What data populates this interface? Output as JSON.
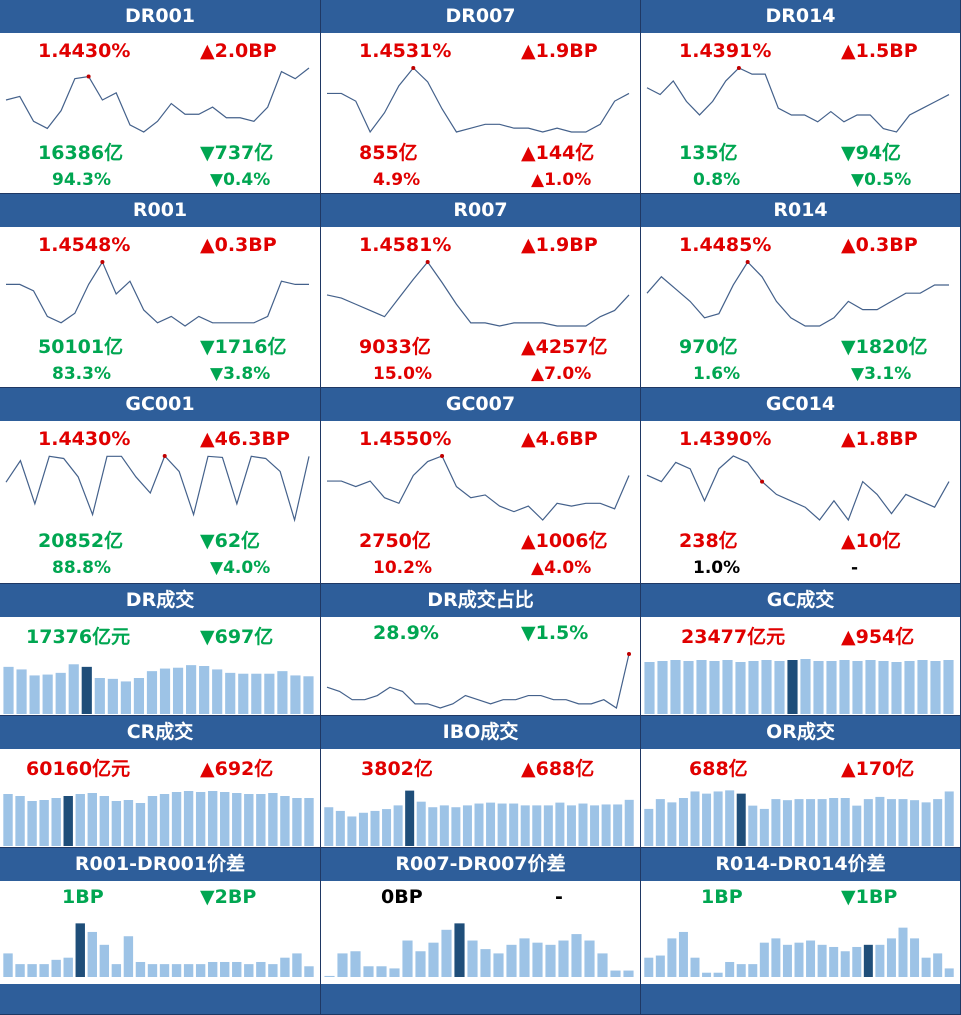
{
  "colors": {
    "header": "#2e5e9a",
    "red": "#e00000",
    "green": "#00a651",
    "bar": "#9dc3e6",
    "bar_highlight": "#1f4e79",
    "line": "#44618b"
  },
  "panels": [
    {
      "title": "DR001",
      "type": "line",
      "v1": "1.4430%",
      "v1c": "red",
      "v2": "▲2.0BP",
      "v2c": "red",
      "v3": "16386亿",
      "v3c": "green",
      "v4": "▼737亿",
      "v4c": "green",
      "v5": "94.3%",
      "v5c": "green",
      "v6": "▼0.4%",
      "v6c": "green",
      "series": [
        1.41,
        1.415,
        1.38,
        1.37,
        1.395,
        1.44,
        1.443,
        1.41,
        1.42,
        1.375,
        1.365,
        1.38,
        1.405,
        1.39,
        1.39,
        1.4,
        1.385,
        1.385,
        1.38,
        1.4,
        1.45,
        1.44,
        1.455
      ],
      "peak": 6
    },
    {
      "title": "DR007",
      "type": "line",
      "v1": "1.4531%",
      "v1c": "red",
      "v2": "▲1.9BP",
      "v2c": "red",
      "v3": "855亿",
      "v3c": "red",
      "v4": "▲144亿",
      "v4c": "red",
      "v5": "4.9%",
      "v5c": "red",
      "v6": "▲1.0%",
      "v6c": "red",
      "series": [
        1.42,
        1.42,
        1.41,
        1.37,
        1.395,
        1.43,
        1.453,
        1.435,
        1.4,
        1.37,
        1.375,
        1.38,
        1.38,
        1.375,
        1.375,
        1.37,
        1.375,
        1.37,
        1.37,
        1.38,
        1.41,
        1.42
      ],
      "peak": 6
    },
    {
      "title": "DR014",
      "type": "line",
      "v1": "1.4391%",
      "v1c": "red",
      "v2": "▲1.5BP",
      "v2c": "red",
      "v3": "135亿",
      "v3c": "green",
      "v4": "▼94亿",
      "v4c": "green",
      "v5": "0.8%",
      "v5c": "green",
      "v6": "▼0.5%",
      "v6c": "green",
      "series": [
        1.41,
        1.4,
        1.42,
        1.39,
        1.37,
        1.39,
        1.42,
        1.439,
        1.43,
        1.43,
        1.38,
        1.37,
        1.37,
        1.36,
        1.375,
        1.36,
        1.37,
        1.37,
        1.35,
        1.345,
        1.37,
        1.38,
        1.39,
        1.4
      ],
      "peak": 7
    },
    {
      "title": "R001",
      "type": "line",
      "v1": "1.4548%",
      "v1c": "red",
      "v2": "▲0.3BP",
      "v2c": "red",
      "v3": "50101亿",
      "v3c": "green",
      "v4": "▼1716亿",
      "v4c": "green",
      "v5": "83.3%",
      "v5c": "green",
      "v6": "▼3.8%",
      "v6c": "green",
      "series": [
        1.42,
        1.42,
        1.41,
        1.37,
        1.36,
        1.375,
        1.42,
        1.455,
        1.405,
        1.425,
        1.38,
        1.36,
        1.37,
        1.355,
        1.37,
        1.36,
        1.36,
        1.36,
        1.36,
        1.37,
        1.425,
        1.42,
        1.42
      ],
      "peak": 7
    },
    {
      "title": "R007",
      "type": "line",
      "v1": "1.4581%",
      "v1c": "red",
      "v2": "▲1.9BP",
      "v2c": "red",
      "v3": "9033亿",
      "v3c": "red",
      "v4": "▲4257亿",
      "v4c": "red",
      "v5": "15.0%",
      "v5c": "red",
      "v6": "▲7.0%",
      "v6c": "red",
      "series": [
        1.405,
        1.4,
        1.39,
        1.38,
        1.37,
        1.4,
        1.43,
        1.458,
        1.425,
        1.39,
        1.36,
        1.36,
        1.355,
        1.36,
        1.36,
        1.36,
        1.355,
        1.355,
        1.355,
        1.37,
        1.38,
        1.405
      ],
      "peak": 7
    },
    {
      "title": "R014",
      "type": "line",
      "v1": "1.4485%",
      "v1c": "red",
      "v2": "▲0.3BP",
      "v2c": "red",
      "v3": "970亿",
      "v3c": "green",
      "v4": "▼1820亿",
      "v4c": "green",
      "v5": "1.6%",
      "v5c": "green",
      "v6": "▼3.1%",
      "v6c": "green",
      "series": [
        1.41,
        1.43,
        1.415,
        1.4,
        1.38,
        1.385,
        1.42,
        1.448,
        1.43,
        1.4,
        1.38,
        1.37,
        1.37,
        1.38,
        1.4,
        1.39,
        1.39,
        1.4,
        1.41,
        1.41,
        1.42,
        1.42
      ],
      "peak": 7
    },
    {
      "title": "GC001",
      "type": "line",
      "v1": "1.4430%",
      "v1c": "red",
      "v2": "▲46.3BP",
      "v2c": "red",
      "v3": "20852亿",
      "v3c": "green",
      "v4": "▼62亿",
      "v4c": "green",
      "v5": "88.8%",
      "v5c": "green",
      "v6": "▼4.0%",
      "v6c": "green",
      "series": [
        1.2,
        1.4,
        1.0,
        1.44,
        1.42,
        1.25,
        0.9,
        1.44,
        1.44,
        1.25,
        1.1,
        1.443,
        1.3,
        0.9,
        1.44,
        1.43,
        1.0,
        1.44,
        1.42,
        1.3,
        0.85,
        1.44
      ],
      "peak": 11
    },
    {
      "title": "GC007",
      "type": "line",
      "v1": "1.4550%",
      "v1c": "red",
      "v2": "▲4.6BP",
      "v2c": "red",
      "v3": "2750亿",
      "v3c": "red",
      "v4": "▲1006亿",
      "v4c": "red",
      "v5": "10.2%",
      "v5c": "red",
      "v6": "▲4.0%",
      "v6c": "red",
      "series": [
        1.41,
        1.41,
        1.4,
        1.41,
        1.38,
        1.37,
        1.42,
        1.445,
        1.455,
        1.4,
        1.38,
        1.385,
        1.365,
        1.355,
        1.365,
        1.34,
        1.37,
        1.365,
        1.37,
        1.37,
        1.36,
        1.42
      ],
      "peak": 8
    },
    {
      "title": "GC014",
      "type": "line",
      "v1": "1.4390%",
      "v1c": "red",
      "v2": "▲1.8BP",
      "v2c": "red",
      "v3": "238亿",
      "v3c": "red",
      "v4": "▲10亿",
      "v4c": "red",
      "v5": "1.0%",
      "v5c": "black",
      "v6": "-",
      "v6c": "black",
      "series": [
        1.41,
        1.4,
        1.43,
        1.42,
        1.37,
        1.42,
        1.44,
        1.43,
        1.4,
        1.38,
        1.37,
        1.36,
        1.34,
        1.37,
        1.34,
        1.4,
        1.38,
        1.35,
        1.38,
        1.37,
        1.36,
        1.4
      ],
      "peak": 8
    },
    {
      "title": "DR成交",
      "type": "bar",
      "v1": "17376亿元",
      "v1c": "green",
      "v2": "▼697亿",
      "v2c": "green",
      "series": [
        55,
        52,
        45,
        46,
        48,
        58,
        55,
        42,
        41,
        38,
        42,
        50,
        53,
        54,
        57,
        56,
        52,
        48,
        47,
        47,
        47,
        50,
        45,
        44
      ],
      "highlight": 6,
      "max": 70
    },
    {
      "title": "DR成交占比",
      "type": "line2",
      "v1": "28.9%",
      "v1c": "green",
      "v2": "▼1.5%",
      "v2c": "green",
      "series": [
        30,
        29.5,
        28.5,
        28.5,
        29,
        30,
        29.5,
        28,
        28,
        27.5,
        28,
        29,
        28.5,
        28,
        28.5,
        28.5,
        29,
        29,
        28.5,
        28.5,
        28,
        28,
        28.5,
        27.5,
        34
      ],
      "peak": 24
    },
    {
      "title": "GC成交",
      "type": "bar",
      "v1": "23477亿元",
      "v1c": "red",
      "v2": "▲954亿",
      "v2c": "red",
      "series": [
        52,
        53,
        54,
        53,
        54,
        53,
        54,
        52,
        53,
        54,
        53,
        54,
        55,
        53,
        53,
        54,
        53,
        54,
        53,
        52,
        53,
        54,
        53,
        54
      ],
      "highlight": 11,
      "max": 60
    },
    {
      "title": "CR成交",
      "type": "bar",
      "v1": "60160亿元",
      "v1c": "red",
      "v2": "▲692亿",
      "v2c": "red",
      "series": [
        52,
        50,
        45,
        46,
        48,
        50,
        52,
        53,
        50,
        45,
        46,
        43,
        50,
        52,
        54,
        55,
        54,
        55,
        54,
        53,
        52,
        52,
        53,
        50,
        48,
        48
      ],
      "highlight": 5,
      "max": 60
    },
    {
      "title": "IBO成交",
      "type": "bar",
      "v1": "3802亿",
      "v1c": "red",
      "v2": "▲688亿",
      "v2c": "red",
      "series": [
        42,
        38,
        32,
        36,
        38,
        40,
        44,
        60,
        48,
        42,
        44,
        42,
        44,
        46,
        47,
        46,
        46,
        44,
        44,
        44,
        47,
        44,
        46,
        44,
        45,
        45,
        50
      ],
      "highlight": 7,
      "max": 65
    },
    {
      "title": "OR成交",
      "type": "bar",
      "v1": "688亿",
      "v1c": "red",
      "v2": "▲170亿",
      "v2c": "red",
      "series": [
        34,
        43,
        40,
        44,
        50,
        48,
        50,
        51,
        48,
        37,
        34,
        43,
        42,
        43,
        43,
        43,
        44,
        44,
        37,
        43,
        45,
        43,
        43,
        42,
        40,
        43,
        50
      ],
      "highlight": 8,
      "max": 55
    },
    {
      "title": "R001-DR001价差",
      "type": "bar",
      "v1": "1BP",
      "v1c": "green",
      "v2": "▼2BP",
      "v2c": "green",
      "series": [
        22,
        12,
        12,
        12,
        16,
        18,
        50,
        42,
        30,
        12,
        38,
        14,
        12,
        12,
        12,
        12,
        12,
        14,
        14,
        14,
        12,
        14,
        12,
        18,
        22,
        10
      ],
      "highlight": 6,
      "max": 55
    },
    {
      "title": "R007-DR007价差",
      "type": "bar",
      "v1": "0BP",
      "v1c": "black",
      "v2": "-",
      "v2c": "black",
      "series": [
        1,
        22,
        24,
        10,
        10,
        8,
        34,
        24,
        32,
        44,
        50,
        34,
        26,
        22,
        30,
        36,
        32,
        30,
        34,
        40,
        34,
        22,
        6,
        6
      ],
      "highlight": 10,
      "max": 55
    },
    {
      "title": "R014-DR014价差",
      "type": "bar",
      "v1": "1BP",
      "v1c": "green",
      "v2": "▼1BP",
      "v2c": "green",
      "series": [
        18,
        20,
        36,
        42,
        18,
        4,
        4,
        14,
        12,
        12,
        32,
        36,
        30,
        32,
        34,
        30,
        28,
        24,
        28,
        30,
        30,
        36,
        46,
        36,
        18,
        22,
        8
      ],
      "highlight": 19,
      "max": 55
    }
  ]
}
